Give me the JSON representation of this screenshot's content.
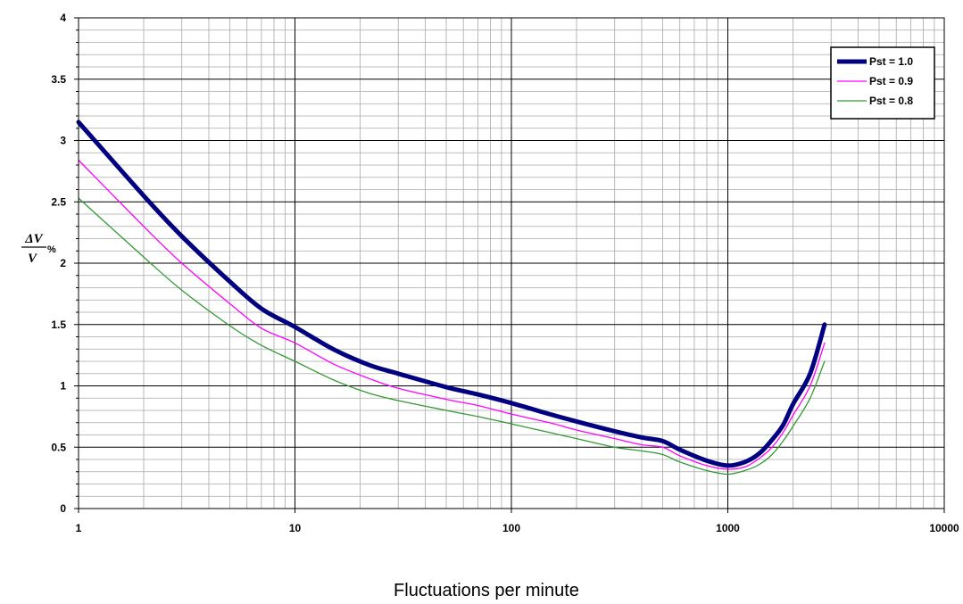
{
  "chart_data": {
    "type": "line",
    "title": "",
    "xlabel": "Fluctuations per minute",
    "ylabel": {
      "numerator": "ΔV",
      "denominator": "V",
      "unit": "%"
    },
    "xscale": "log",
    "xlim": [
      1,
      10000
    ],
    "ylim": [
      0,
      4
    ],
    "x_ticks": [
      "1",
      "10",
      "100",
      "1000",
      "10000"
    ],
    "y_ticks": [
      "0",
      "0.5",
      "1",
      "1.5",
      "2",
      "2.5",
      "3",
      "3.5",
      "4"
    ],
    "grid": true,
    "legend_position": "top-right",
    "series": [
      {
        "name": "Pst = 1.0",
        "color": "#000080",
        "x": [
          1,
          2,
          3,
          5,
          7,
          10,
          15,
          22,
          30,
          50,
          70,
          100,
          150,
          200,
          300,
          400,
          500,
          600,
          800,
          1000,
          1200,
          1400,
          1600,
          1800,
          2000,
          2400,
          2800
        ],
        "y": [
          3.15,
          2.55,
          2.22,
          1.85,
          1.63,
          1.48,
          1.3,
          1.17,
          1.1,
          0.99,
          0.93,
          0.86,
          0.77,
          0.71,
          0.63,
          0.58,
          0.55,
          0.48,
          0.39,
          0.35,
          0.38,
          0.45,
          0.56,
          0.68,
          0.85,
          1.1,
          1.5
        ]
      },
      {
        "name": "Pst = 0.9",
        "color": "#FF00FF",
        "x": [
          1,
          2,
          3,
          5,
          7,
          10,
          15,
          22,
          30,
          50,
          70,
          100,
          150,
          200,
          300,
          400,
          500,
          600,
          800,
          1000,
          1200,
          1400,
          1600,
          1800,
          2000,
          2400,
          2800
        ],
        "y": [
          2.84,
          2.3,
          2.0,
          1.67,
          1.47,
          1.35,
          1.18,
          1.06,
          0.98,
          0.89,
          0.84,
          0.77,
          0.7,
          0.64,
          0.57,
          0.52,
          0.5,
          0.43,
          0.35,
          0.32,
          0.34,
          0.41,
          0.5,
          0.62,
          0.76,
          1.0,
          1.35
        ]
      },
      {
        "name": "Pst = 0.8",
        "color": "#339933",
        "x": [
          1,
          2,
          3,
          5,
          7,
          10,
          15,
          22,
          30,
          50,
          70,
          100,
          150,
          200,
          300,
          400,
          500,
          600,
          800,
          1000,
          1200,
          1400,
          1600,
          1800,
          2000,
          2400,
          2800
        ],
        "y": [
          2.53,
          2.05,
          1.78,
          1.49,
          1.33,
          1.2,
          1.05,
          0.94,
          0.88,
          0.8,
          0.75,
          0.69,
          0.62,
          0.57,
          0.5,
          0.47,
          0.44,
          0.38,
          0.31,
          0.28,
          0.31,
          0.36,
          0.44,
          0.55,
          0.67,
          0.9,
          1.2
        ]
      }
    ]
  }
}
